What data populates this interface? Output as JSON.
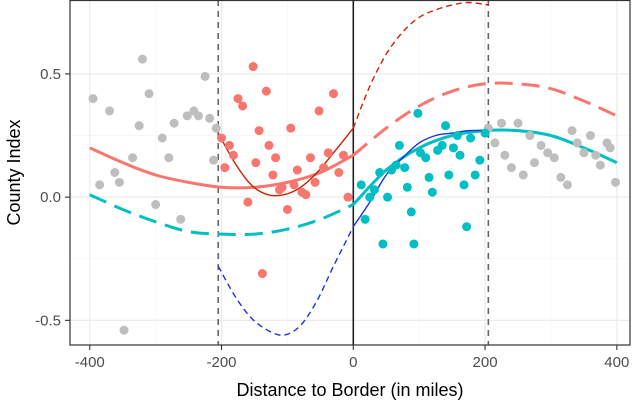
{
  "colors": {
    "panel_border": "#333333",
    "grid_major": "#ebebeb",
    "grid_minor": "#f5f5f5",
    "gray_points": "#bebebe",
    "red": "#f8766d",
    "teal": "#00bfc4",
    "dark_red": "#cc2200",
    "blue": "#1a33dd",
    "guide_dashed": "#666666",
    "border_line": "#222222"
  },
  "chart_data": {
    "type": "scatter",
    "title": "",
    "xlabel": "Distance to Border (in miles)",
    "ylabel": "County Index",
    "xlim": [
      -430,
      420
    ],
    "ylim": [
      -0.6,
      0.8
    ],
    "x_ticks": [
      -400,
      -200,
      0,
      200,
      400
    ],
    "x_tick_labels": [
      "-400",
      "-200",
      "0",
      "200",
      "400"
    ],
    "y_ticks": [
      -0.5,
      0.0,
      0.5
    ],
    "y_tick_labels": [
      "-0.5",
      "0.0",
      "0.5"
    ],
    "grid": true,
    "vertical_lines": [
      {
        "x": -205,
        "style": "dashed"
      },
      {
        "x": 0,
        "style": "solid"
      },
      {
        "x": 205,
        "style": "dashed"
      }
    ],
    "gray_points": [
      [
        -395,
        0.4
      ],
      [
        -385,
        0.05
      ],
      [
        -370,
        0.35
      ],
      [
        -362,
        0.1
      ],
      [
        -355,
        0.06
      ],
      [
        -348,
        -0.54
      ],
      [
        -335,
        0.16
      ],
      [
        -325,
        0.29
      ],
      [
        -320,
        0.56
      ],
      [
        -310,
        0.42
      ],
      [
        -300,
        -0.03
      ],
      [
        -290,
        0.24
      ],
      [
        -280,
        0.16
      ],
      [
        -272,
        0.3
      ],
      [
        -262,
        -0.09
      ],
      [
        -252,
        0.33
      ],
      [
        -242,
        0.35
      ],
      [
        -235,
        0.33
      ],
      [
        -225,
        0.49
      ],
      [
        -218,
        0.32
      ],
      [
        -212,
        0.15
      ],
      [
        -208,
        0.28
      ],
      [
        205,
        0.28
      ],
      [
        215,
        0.22
      ],
      [
        225,
        0.3
      ],
      [
        230,
        0.17
      ],
      [
        240,
        0.12
      ],
      [
        250,
        0.3
      ],
      [
        258,
        0.09
      ],
      [
        268,
        0.25
      ],
      [
        275,
        0.14
      ],
      [
        285,
        0.21
      ],
      [
        295,
        0.18
      ],
      [
        305,
        0.16
      ],
      [
        315,
        0.08
      ],
      [
        325,
        0.05
      ],
      [
        332,
        0.27
      ],
      [
        340,
        0.22
      ],
      [
        350,
        0.18
      ],
      [
        360,
        0.25
      ],
      [
        368,
        0.17
      ],
      [
        375,
        0.13
      ],
      [
        385,
        0.22
      ],
      [
        390,
        0.2
      ],
      [
        398,
        0.06
      ]
    ],
    "series": [
      {
        "name": "",
        "color_key": "red",
        "points": [
          [
            -200,
            0.24
          ],
          [
            -195,
            0.12
          ],
          [
            -188,
            0.21
          ],
          [
            -182,
            0.17
          ],
          [
            -175,
            0.4
          ],
          [
            -168,
            0.37
          ],
          [
            -160,
            -0.02
          ],
          [
            -152,
            0.53
          ],
          [
            -148,
            0.14
          ],
          [
            -143,
            0.27
          ],
          [
            -138,
            -0.31
          ],
          [
            -132,
            0.43
          ],
          [
            -128,
            0.21
          ],
          [
            -122,
            0.09
          ],
          [
            -118,
            0.16
          ],
          [
            -112,
            0.03
          ],
          [
            -108,
            0.04
          ],
          [
            -100,
            -0.05
          ],
          [
            -95,
            0.28
          ],
          [
            -90,
            0.05
          ],
          [
            -85,
            0.11
          ],
          [
            -78,
            0.02
          ],
          [
            -72,
            0.01
          ],
          [
            -65,
            0.16
          ],
          [
            -58,
            0.06
          ],
          [
            -52,
            0.35
          ],
          [
            -45,
            0.12
          ],
          [
            -38,
            0.18
          ],
          [
            -30,
            0.42
          ],
          [
            -22,
            0.1
          ],
          [
            -15,
            0.17
          ],
          [
            -8,
            0.0
          ]
        ]
      },
      {
        "name": "",
        "color_key": "teal",
        "points": [
          [
            12,
            0.05
          ],
          [
            18,
            -0.09
          ],
          [
            25,
            0.0
          ],
          [
            32,
            0.03
          ],
          [
            40,
            0.1
          ],
          [
            45,
            -0.19
          ],
          [
            52,
            0.0
          ],
          [
            58,
            0.11
          ],
          [
            65,
            0.13
          ],
          [
            70,
            0.21
          ],
          [
            78,
            0.12
          ],
          [
            82,
            0.04
          ],
          [
            88,
            -0.06
          ],
          [
            92,
            -0.19
          ],
          [
            98,
            0.34
          ],
          [
            102,
            0.18
          ],
          [
            110,
            0.16
          ],
          [
            115,
            0.08
          ],
          [
            120,
            0.02
          ],
          [
            128,
            0.19
          ],
          [
            135,
            0.21
          ],
          [
            140,
            0.29
          ],
          [
            145,
            0.09
          ],
          [
            152,
            0.2
          ],
          [
            158,
            0.25
          ],
          [
            162,
            0.17
          ],
          [
            168,
            0.05
          ],
          [
            172,
            -0.12
          ],
          [
            178,
            0.24
          ],
          [
            185,
            0.09
          ],
          [
            192,
            0.15
          ],
          [
            200,
            0.26
          ]
        ]
      }
    ],
    "fits": [
      {
        "color_key": "red",
        "style": "solid",
        "width": 3,
        "points": [
          [
            -400,
            0.2
          ],
          [
            -350,
            0.14
          ],
          [
            -300,
            0.09
          ],
          [
            -250,
            0.06
          ],
          [
            -200,
            0.04
          ],
          [
            -150,
            0.04
          ],
          [
            -100,
            0.06
          ],
          [
            -50,
            0.1
          ],
          [
            0,
            0.17
          ]
        ]
      },
      {
        "color_key": "teal",
        "style": "long-dash",
        "width": 3,
        "points": [
          [
            -400,
            0.01
          ],
          [
            -350,
            -0.05
          ],
          [
            -300,
            -0.1
          ],
          [
            -250,
            -0.14
          ],
          [
            -200,
            -0.15
          ],
          [
            -150,
            -0.15
          ],
          [
            -100,
            -0.13
          ],
          [
            -50,
            -0.09
          ],
          [
            0,
            -0.03
          ]
        ]
      },
      {
        "color_key": "red",
        "style": "long-dash",
        "width": 3,
        "points": [
          [
            0,
            0.17
          ],
          [
            50,
            0.28
          ],
          [
            100,
            0.37
          ],
          [
            150,
            0.43
          ],
          [
            200,
            0.46
          ],
          [
            250,
            0.46
          ],
          [
            300,
            0.44
          ],
          [
            350,
            0.39
          ],
          [
            400,
            0.33
          ]
        ]
      },
      {
        "color_key": "teal",
        "style": "solid",
        "width": 3,
        "points": [
          [
            0,
            -0.03
          ],
          [
            50,
            0.11
          ],
          [
            100,
            0.2
          ],
          [
            150,
            0.25
          ],
          [
            200,
            0.27
          ],
          [
            250,
            0.27
          ],
          [
            300,
            0.25
          ],
          [
            350,
            0.2
          ],
          [
            400,
            0.14
          ]
        ]
      },
      {
        "color_key": "dark_red",
        "style": "solid",
        "width": 1.4,
        "points": [
          [
            -205,
            0.26
          ],
          [
            -180,
            0.14
          ],
          [
            -155,
            0.05
          ],
          [
            -130,
            0.01
          ],
          [
            -105,
            0.01
          ],
          [
            -80,
            0.04
          ],
          [
            -55,
            0.1
          ],
          [
            -30,
            0.18
          ],
          [
            0,
            0.28
          ]
        ]
      },
      {
        "color_key": "blue",
        "style": "solid",
        "width": 1.4,
        "points": [
          [
            0,
            -0.12
          ],
          [
            25,
            -0.02
          ],
          [
            50,
            0.09
          ],
          [
            75,
            0.16
          ],
          [
            100,
            0.22
          ],
          [
            125,
            0.25
          ],
          [
            150,
            0.26
          ],
          [
            175,
            0.27
          ],
          [
            205,
            0.27
          ]
        ]
      },
      {
        "color_key": "dark_red",
        "style": "short-dash",
        "width": 1.4,
        "points": [
          [
            0,
            0.28
          ],
          [
            25,
            0.45
          ],
          [
            50,
            0.58
          ],
          [
            75,
            0.67
          ],
          [
            100,
            0.73
          ],
          [
            125,
            0.76
          ],
          [
            150,
            0.78
          ],
          [
            175,
            0.79
          ],
          [
            205,
            0.78
          ]
        ]
      },
      {
        "color_key": "blue",
        "style": "short-dash",
        "width": 1.4,
        "points": [
          [
            -205,
            -0.28
          ],
          [
            -180,
            -0.4
          ],
          [
            -155,
            -0.49
          ],
          [
            -130,
            -0.54
          ],
          [
            -105,
            -0.56
          ],
          [
            -80,
            -0.52
          ],
          [
            -55,
            -0.42
          ],
          [
            -30,
            -0.28
          ],
          [
            0,
            -0.12
          ]
        ]
      }
    ]
  }
}
